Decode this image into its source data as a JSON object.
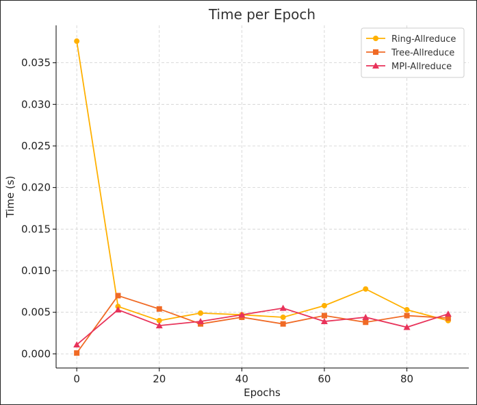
{
  "chart_data": {
    "type": "line",
    "title": "Time per Epoch",
    "xlabel": "Epochs",
    "ylabel": "Time (s)",
    "xlim": [
      -5,
      95
    ],
    "ylim": [
      -0.0017,
      0.0395
    ],
    "xticks": [
      0,
      20,
      40,
      60,
      80
    ],
    "xtick_labels": [
      "0",
      "20",
      "40",
      "60",
      "80"
    ],
    "yticks": [
      0.0,
      0.005,
      0.01,
      0.015,
      0.02,
      0.025,
      0.03,
      0.035
    ],
    "ytick_labels": [
      "0.000",
      "0.005",
      "0.010",
      "0.015",
      "0.020",
      "0.025",
      "0.030",
      "0.035"
    ],
    "grid": true,
    "legend_position": "top-right",
    "x": [
      0,
      10,
      20,
      30,
      40,
      50,
      60,
      70,
      80,
      90
    ],
    "series": [
      {
        "name": "Ring-Allreduce",
        "color": "#ffb000",
        "marker": "circle",
        "values": [
          0.0376,
          0.0057,
          0.004,
          0.0049,
          0.0047,
          0.0044,
          0.0058,
          0.0078,
          0.0053,
          0.004
        ]
      },
      {
        "name": "Tree-Allreduce",
        "color": "#f06a25",
        "marker": "square",
        "values": [
          0.0001,
          0.007,
          0.0054,
          0.0036,
          0.0044,
          0.0036,
          0.0046,
          0.0038,
          0.0046,
          0.0043
        ]
      },
      {
        "name": "MPI-Allreduce",
        "color": "#e8335a",
        "marker": "triangle",
        "values": [
          0.0011,
          0.0053,
          0.0034,
          0.0039,
          0.0047,
          0.0055,
          0.0039,
          0.0044,
          0.0032,
          0.0048
        ]
      }
    ]
  }
}
